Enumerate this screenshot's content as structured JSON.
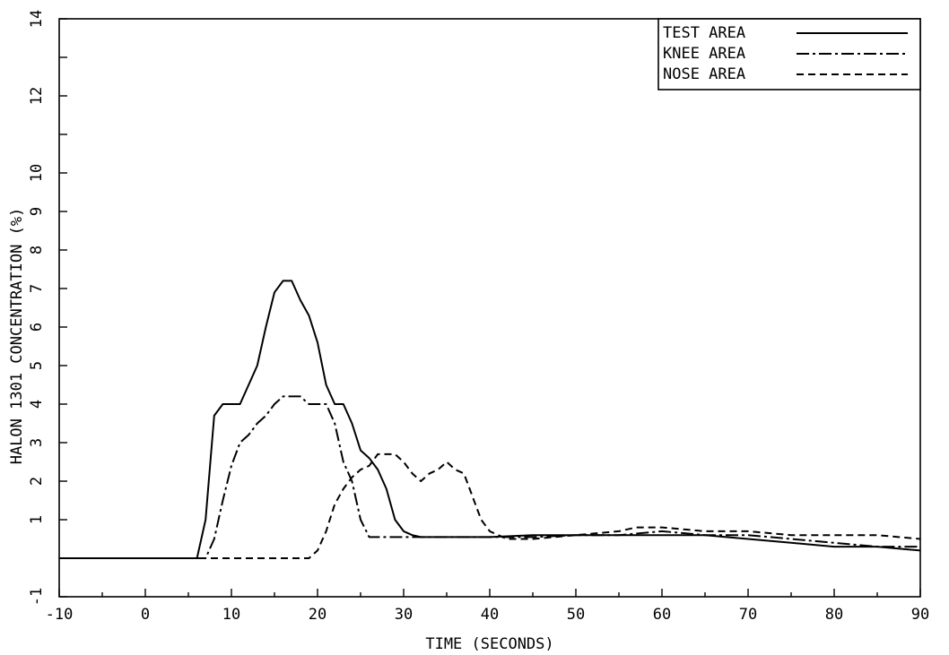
{
  "chart_data": {
    "type": "line",
    "xlabel": "TIME (SECONDS)",
    "ylabel": "HALON 1301 CONCENTRATION (%)",
    "xlim": [
      -10,
      90
    ],
    "ylim": [
      -1,
      14
    ],
    "x_ticks": [
      "-10",
      "0",
      "10",
      "20",
      "30",
      "40",
      "50",
      "60",
      "70",
      "80",
      "90"
    ],
    "y_ticks": [
      "-1",
      "1",
      "2",
      "3",
      "4",
      "5",
      "6",
      "7",
      "8",
      "9",
      "10",
      "12",
      "14"
    ],
    "legend_position": "top-right",
    "grid": false,
    "series": [
      {
        "name": "TEST AREA",
        "style": "solid",
        "x": [
          -10,
          6,
          7,
          8,
          9,
          10,
          11,
          12,
          13,
          14,
          15,
          16,
          17,
          18,
          19,
          20,
          21,
          22,
          23,
          24,
          25,
          26,
          27,
          28,
          29,
          30,
          31,
          32,
          33,
          34,
          35,
          40,
          45,
          50,
          60,
          65,
          70,
          75,
          80,
          85,
          90
        ],
        "y": [
          0,
          0,
          1,
          3.7,
          4,
          4,
          4,
          4.5,
          5,
          6,
          6.9,
          7.2,
          7.2,
          6.7,
          6.3,
          5.6,
          4.5,
          4,
          4,
          3.5,
          2.8,
          2.6,
          2.3,
          1.8,
          1,
          0.7,
          0.6,
          0.55,
          0.55,
          0.55,
          0.55,
          0.55,
          0.6,
          0.6,
          0.6,
          0.6,
          0.5,
          0.4,
          0.3,
          0.3,
          0.2
        ]
      },
      {
        "name": "KNEE AREA",
        "style": "dashdot",
        "x": [
          -10,
          7,
          8,
          9,
          10,
          11,
          12,
          13,
          14,
          15,
          16,
          17,
          18,
          19,
          20,
          21,
          22,
          23,
          24,
          25,
          26,
          27,
          30,
          33,
          35,
          40,
          45,
          50,
          55,
          60,
          65,
          70,
          75,
          80,
          85,
          90
        ],
        "y": [
          0,
          0,
          0.5,
          1.5,
          2.4,
          3,
          3.2,
          3.5,
          3.7,
          4,
          4.2,
          4.2,
          4.2,
          4,
          4,
          4,
          3.5,
          2.5,
          2,
          1,
          0.55,
          0.55,
          0.55,
          0.55,
          0.55,
          0.55,
          0.55,
          0.6,
          0.6,
          0.7,
          0.6,
          0.6,
          0.5,
          0.4,
          0.3,
          0.3
        ]
      },
      {
        "name": "NOSE AREA",
        "style": "dashed",
        "x": [
          -10,
          19,
          20,
          21,
          22,
          23,
          24,
          25,
          26,
          27,
          28,
          29,
          30,
          31,
          32,
          33,
          34,
          35,
          36,
          37,
          38,
          39,
          40,
          42,
          45,
          50,
          55,
          57,
          60,
          65,
          70,
          75,
          80,
          85,
          90
        ],
        "y": [
          0,
          0,
          0.2,
          0.7,
          1.4,
          1.8,
          2.1,
          2.3,
          2.4,
          2.7,
          2.7,
          2.7,
          2.5,
          2.2,
          2,
          2.2,
          2.3,
          2.5,
          2.3,
          2.2,
          1.6,
          1.0,
          0.7,
          0.5,
          0.5,
          0.6,
          0.7,
          0.8,
          0.8,
          0.7,
          0.7,
          0.6,
          0.6,
          0.6,
          0.5
        ]
      }
    ]
  }
}
